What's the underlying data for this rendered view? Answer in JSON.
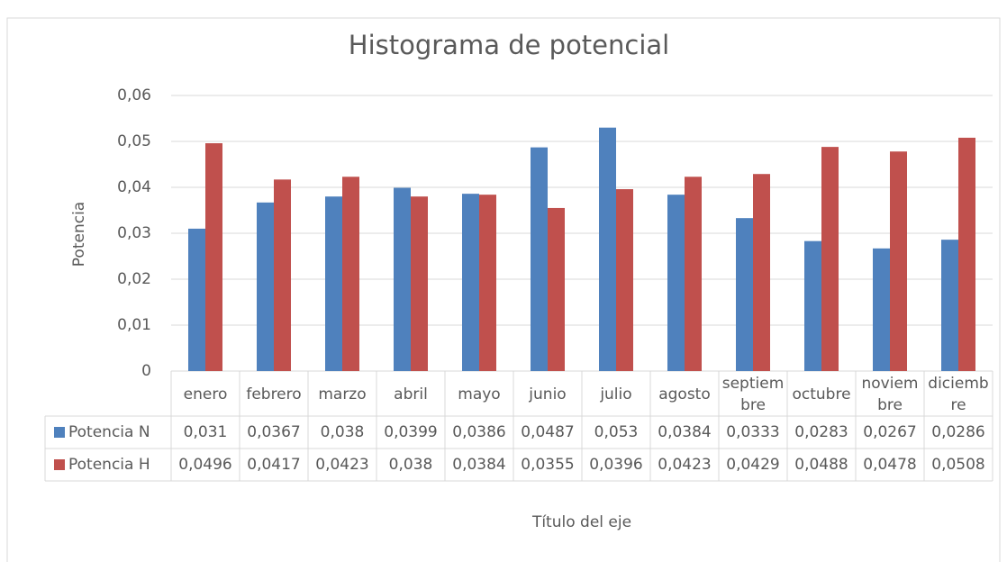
{
  "chart_data": {
    "type": "bar",
    "title": "Histograma de potencial",
    "y_label": "Potencia",
    "x_label": "Título del eje",
    "categories": [
      "enero",
      "febrero",
      "marzo",
      "abril",
      "mayo",
      "junio",
      "julio",
      "agosto",
      "septiembre",
      "octubre",
      "noviembre",
      "diciembre"
    ],
    "series": [
      {
        "name": "Potencia N",
        "color": "#4f81bd",
        "values": [
          0.031,
          0.0367,
          0.038,
          0.0399,
          0.0386,
          0.0487,
          0.053,
          0.0384,
          0.0333,
          0.0283,
          0.0267,
          0.0286
        ],
        "value_labels": [
          "0,031",
          "0,0367",
          "0,038",
          "0,0399",
          "0,0386",
          "0,0487",
          "0,053",
          "0,0384",
          "0,0333",
          "0,0283",
          "0,0267",
          "0,0286"
        ]
      },
      {
        "name": "Potencia H",
        "color": "#c0504d",
        "values": [
          0.0496,
          0.0417,
          0.0423,
          0.038,
          0.0384,
          0.0355,
          0.0396,
          0.0423,
          0.0429,
          0.0488,
          0.0478,
          0.0508
        ],
        "value_labels": [
          "0,0496",
          "0,0417",
          "0,0423",
          "0,038",
          "0,0384",
          "0,0355",
          "0,0396",
          "0,0423",
          "0,0429",
          "0,0488",
          "0,0478",
          "0,0508"
        ]
      }
    ],
    "ylim": [
      0,
      0.06
    ],
    "yticks": [
      0,
      {
        "value": 0.01,
        "label": "0,01"
      },
      {
        "value": 0.02,
        "label": "0,02"
      },
      {
        "value": 0.03,
        "label": "0,03"
      },
      {
        "value": 0.04,
        "label": "0,04"
      },
      {
        "value": 0.05,
        "label": "0,05"
      },
      {
        "value": 0.06,
        "label": "0,06"
      }
    ],
    "grid": true,
    "data_table": true
  }
}
